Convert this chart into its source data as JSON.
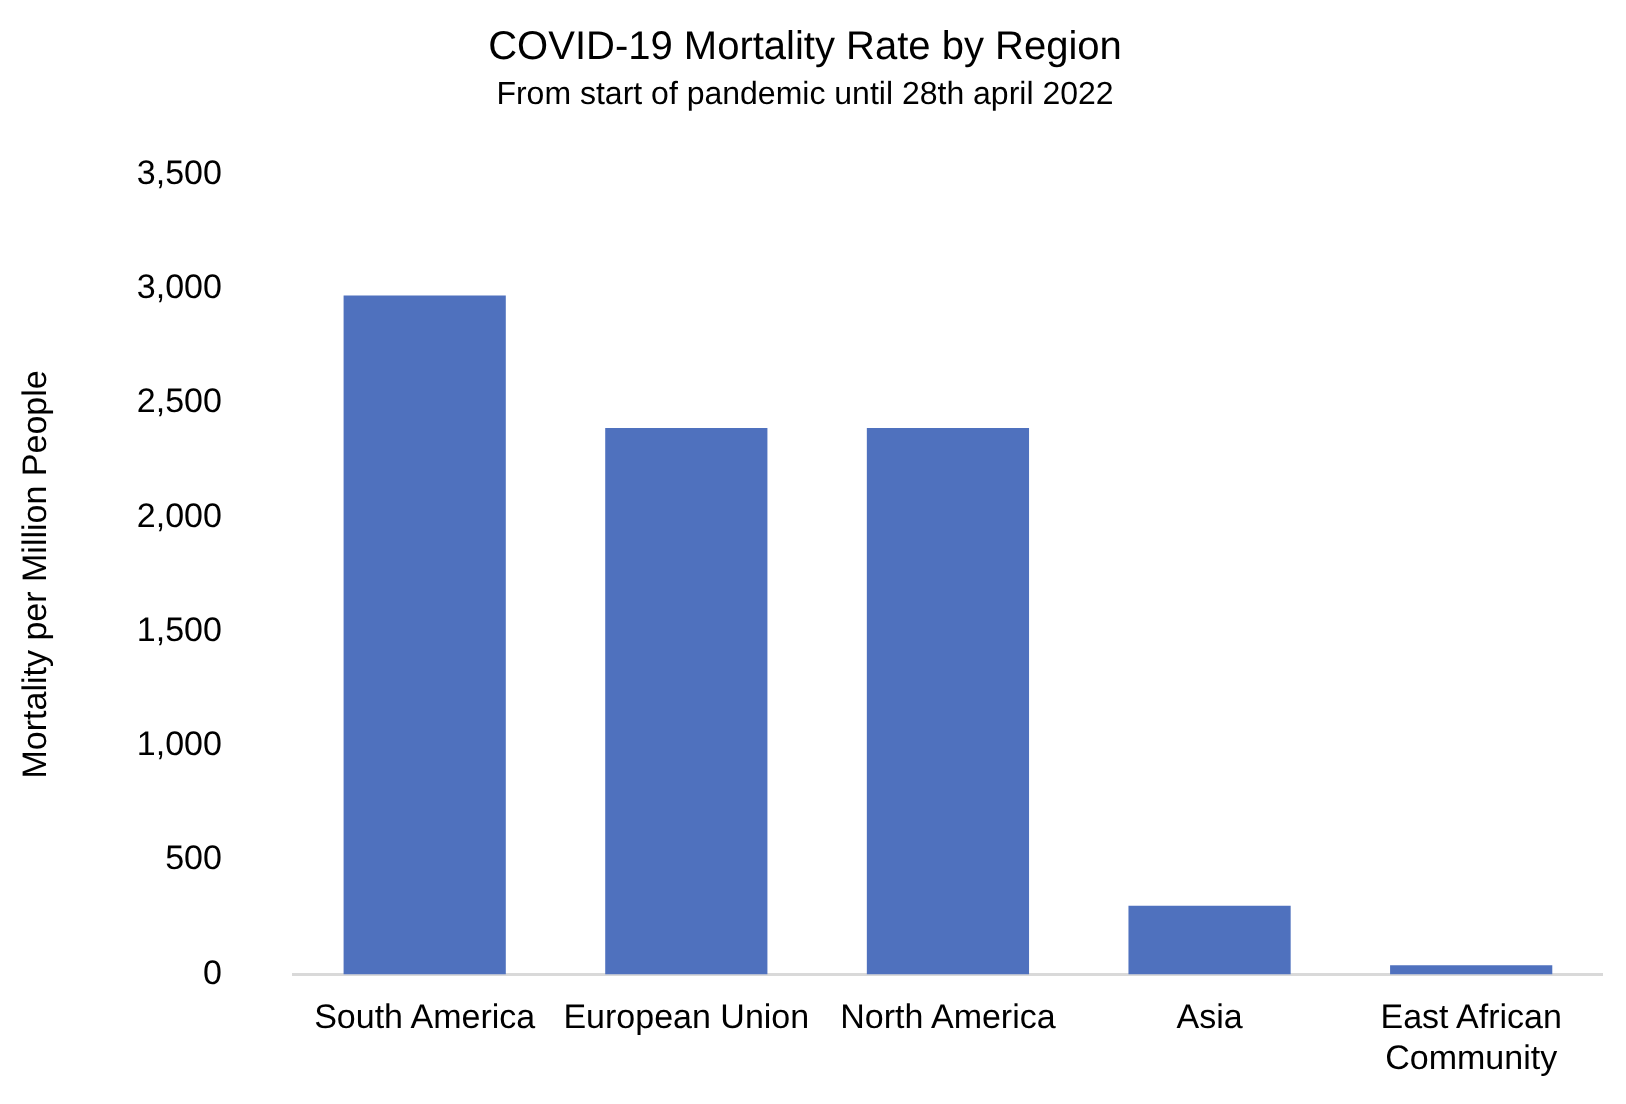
{
  "chart_data": {
    "type": "bar",
    "title": "COVID-19 Mortality Rate by Region",
    "subtitle": "From start of pandemic until 28th april 2022",
    "ylabel": "Mortality per Million People",
    "categories": [
      "South America",
      "European Union",
      "North America",
      "Asia",
      "East African Community"
    ],
    "values": [
      2970,
      2390,
      2390,
      300,
      40
    ],
    "color": "#4f71be",
    "ylim": [
      0,
      3500
    ],
    "yticks": [
      {
        "value": 0,
        "label": "0"
      },
      {
        "value": 500,
        "label": "500"
      },
      {
        "value": 1000,
        "label": "1,000"
      },
      {
        "value": 1500,
        "label": "1,500"
      },
      {
        "value": 2000,
        "label": "2,000"
      },
      {
        "value": 2500,
        "label": "2,500"
      },
      {
        "value": 3000,
        "label": "3,000"
      },
      {
        "value": 3500,
        "label": "3,500"
      }
    ],
    "grid": false,
    "legend": false
  }
}
